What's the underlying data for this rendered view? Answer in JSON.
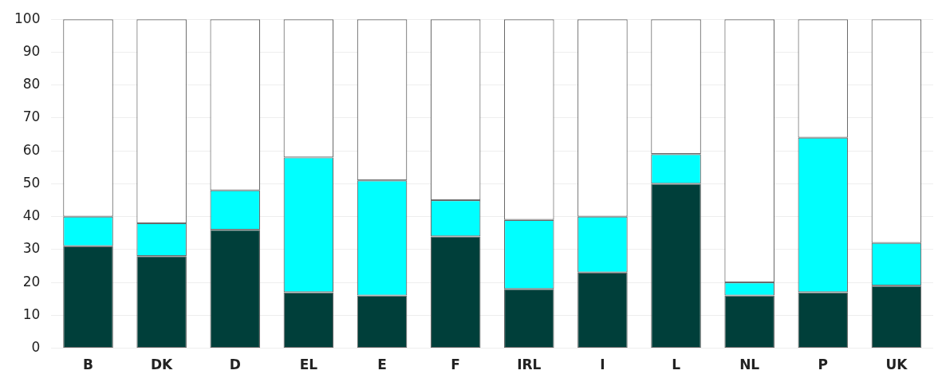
{
  "chart_data": {
    "type": "bar",
    "stacked": true,
    "grid": "y",
    "legend": false,
    "categories": [
      "B",
      "DK",
      "D",
      "EL",
      "E",
      "F",
      "IRL",
      "I",
      "L",
      "NL",
      "P",
      "UK"
    ],
    "series": [
      {
        "color": "#003f3a",
        "values": [
          31,
          28,
          36,
          17,
          16,
          34,
          18,
          23,
          50,
          16,
          17,
          19
        ]
      },
      {
        "color": "#00ffff",
        "values": [
          9,
          10,
          12,
          41,
          35,
          11,
          21,
          17,
          9,
          4,
          47,
          13
        ]
      },
      {
        "color": "#ffffff",
        "values": [
          60,
          62,
          52,
          42,
          49,
          55,
          61,
          60,
          41,
          80,
          36,
          68
        ]
      }
    ],
    "ylim": [
      0,
      100
    ],
    "yticks": [
      0,
      10,
      20,
      30,
      40,
      50,
      60,
      70,
      80,
      90,
      100
    ]
  }
}
